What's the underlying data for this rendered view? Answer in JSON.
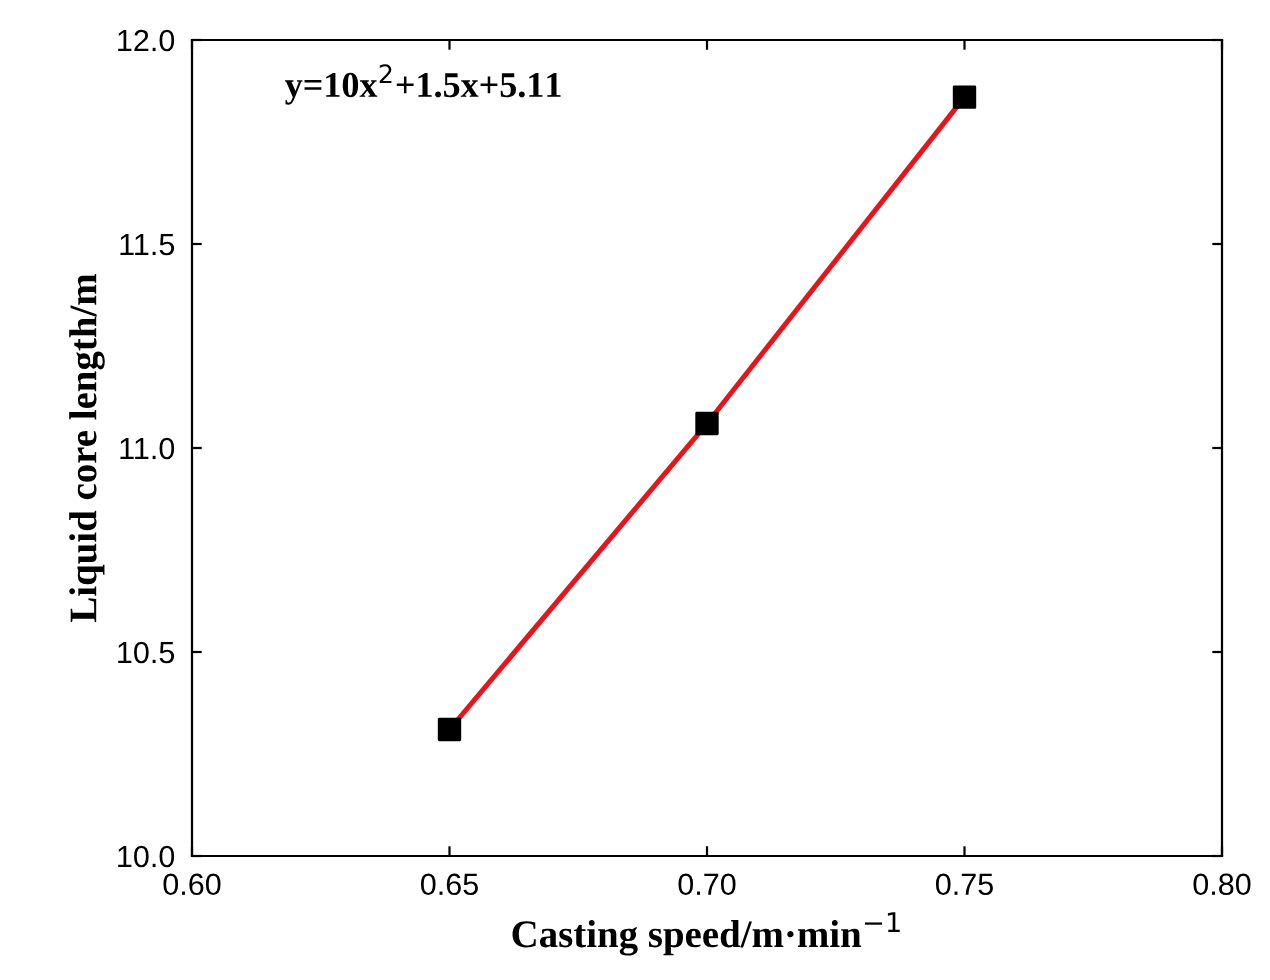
{
  "chart_data": {
    "type": "scatter",
    "xlabel": "Casting speed/m·min$^{−1}$",
    "ylabel": "Liquid core length/m",
    "annotations": [
      "y=10x$^{2}$+1.5x+5.11"
    ],
    "series": [
      {
        "type": "line",
        "color": "#e8141c",
        "x": [
          0.65,
          0.7,
          0.75
        ],
        "values": [
          10.31,
          11.06,
          11.86
        ],
        "marker": "none",
        "line_style": "solid"
      },
      {
        "color": "#000000",
        "x": [
          0.65,
          0.7,
          0.75
        ],
        "values": [
          10.31,
          11.06,
          11.86
        ],
        "marker": "square"
      }
    ],
    "xlim": [
      0.6,
      0.8
    ],
    "xticks": [
      {
        "value": 0.6,
        "label": "0.60"
      },
      {
        "value": 0.65,
        "label": "0.65"
      },
      {
        "value": 0.7,
        "label": "0.70"
      },
      {
        "value": 0.75,
        "label": "0.75"
      },
      {
        "value": 0.8,
        "label": "0.80"
      }
    ],
    "ylim": [
      10.0,
      12.0
    ],
    "yticks": [
      {
        "value": 10.0,
        "label": "10.0"
      },
      {
        "value": 10.5,
        "label": "10.5"
      },
      {
        "value": 11.0,
        "label": "11.0"
      },
      {
        "value": 11.5,
        "label": "11.5"
      },
      {
        "value": 12.0,
        "label": "12.0"
      }
    ],
    "grid": false,
    "legend": false
  }
}
